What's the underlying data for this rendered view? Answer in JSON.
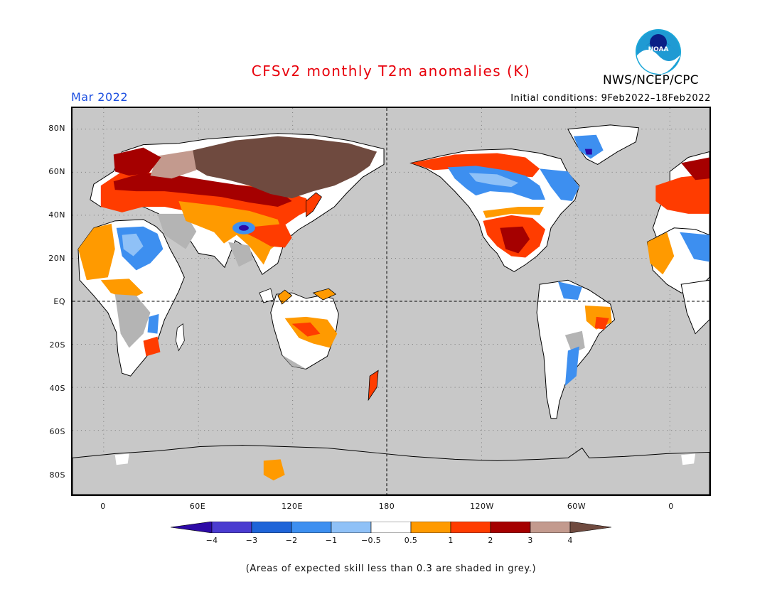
{
  "title": "CFSv2 monthly T2m anomalies (K)",
  "target_month": "Mar 2022",
  "initial_conditions": "Initial conditions: 9Feb2022–18Feb2022",
  "agency": "NWS/NCEP/CPC",
  "logo_text": "NOAA",
  "lat_labels": [
    "80N",
    "60N",
    "40N",
    "20N",
    "EQ",
    "20S",
    "40S",
    "60S",
    "80S"
  ],
  "lon_labels": [
    "0",
    "60E",
    "120E",
    "180",
    "120W",
    "60W",
    "0"
  ],
  "colorbar": {
    "labels": [
      "−4",
      "−3",
      "−2",
      "−1",
      "−0.5",
      "0.5",
      "1",
      "2",
      "3",
      "4"
    ],
    "colors": [
      "#2d0aa6",
      "#4a3bd0",
      "#1e64d8",
      "#3d8ff0",
      "#8fc1f7",
      "#ffffff",
      "#ff9a00",
      "#ff3c00",
      "#a50000",
      "#c39a8e",
      "#6f4a3f"
    ]
  },
  "footnote": "(Areas of expected skill less than 0.3 are shaded in grey.)",
  "colors": {
    "ocean_grey": "#c8c8c8",
    "low_skill_grey": "#b4b4b4",
    "title_red": "#e8000b",
    "month_blue": "#1c4fe0"
  }
}
